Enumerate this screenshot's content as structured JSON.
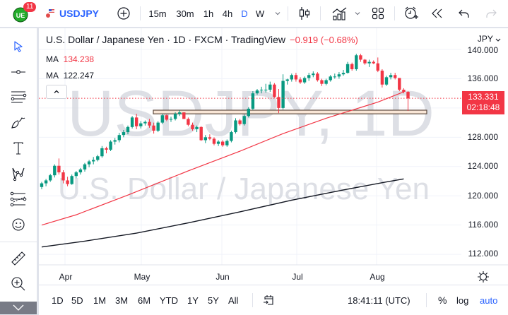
{
  "topbar": {
    "avatar_badge": "11",
    "symbol": "USDJPY",
    "intervals": [
      "15m",
      "30m",
      "1h",
      "4h",
      "D",
      "W"
    ],
    "active_interval": "D",
    "colors": {
      "accent": "#2962ff",
      "badge": "#f23645",
      "avatar": "#22ab2a"
    }
  },
  "left_toolbar": {
    "tools": [
      "cursor",
      "trend-line",
      "horizontal-lines",
      "brush",
      "text",
      "pattern",
      "fib-levels",
      "emoji",
      "ruler",
      "zoom-in"
    ]
  },
  "legend": {
    "title": "U.S. Dollar / Japanese Yen · 1D · FXCM · TradingView",
    "change": "−0.919 (−0.68%)",
    "ma1_label": "MA",
    "ma1_value": "134.238",
    "ma2_label": "MA",
    "ma2_value": "122.247"
  },
  "watermark": {
    "symbol": "USDJPY, 1D",
    "name": "U.S. Dollar / Japanese Yen"
  },
  "price_axis": {
    "currency": "JPY",
    "labels": [
      "140.000",
      "136.000",
      "128.000",
      "124.000",
      "120.000",
      "116.000",
      "112.000"
    ],
    "current_price": "133.331",
    "countdown": "02:18:48"
  },
  "time_axis": {
    "months": [
      "Apr",
      "May",
      "Jun",
      "Jul",
      "Aug"
    ]
  },
  "bottombar": {
    "ranges": [
      "1D",
      "5D",
      "1M",
      "3M",
      "6M",
      "YTD",
      "1Y",
      "5Y",
      "All"
    ],
    "clock": "18:41:11 (UTC)",
    "percent": "%",
    "log": "log",
    "auto": "auto"
  },
  "chart_data": {
    "type": "candlestick",
    "title": "U.S. Dollar / Japanese Yen · 1D · FXCM",
    "xlabel": "",
    "ylabel": "JPY",
    "ylim": [
      110.5,
      141
    ],
    "x_ticks": [
      "Apr",
      "May",
      "Jun",
      "Jul",
      "Aug"
    ],
    "y_ticks": [
      112,
      116,
      120,
      124,
      128,
      136,
      140
    ],
    "current_price": 133.331,
    "series": [
      {
        "name": "USDJPY",
        "type": "candles",
        "up_color": "#089981",
        "down_color": "#f23645",
        "ohlc": [
          [
            121.2,
            121.9,
            120.9,
            121.7
          ],
          [
            121.7,
            122.3,
            121.3,
            122.1
          ],
          [
            122.1,
            123.0,
            121.9,
            122.8
          ],
          [
            122.8,
            124.3,
            122.5,
            124.1
          ],
          [
            124.1,
            125.1,
            122.9,
            123.2
          ],
          [
            123.2,
            123.5,
            121.7,
            122.1
          ],
          [
            122.1,
            122.6,
            121.3,
            121.6
          ],
          [
            121.6,
            122.9,
            121.5,
            122.7
          ],
          [
            122.7,
            123.4,
            122.4,
            123.2
          ],
          [
            123.2,
            123.8,
            122.9,
            123.6
          ],
          [
            123.6,
            124.5,
            123.3,
            124.3
          ],
          [
            124.3,
            124.9,
            123.9,
            124.7
          ],
          [
            124.7,
            125.3,
            124.3,
            124.9
          ],
          [
            124.9,
            125.6,
            124.7,
            125.4
          ],
          [
            125.4,
            126.8,
            125.2,
            126.5
          ],
          [
            126.5,
            126.7,
            125.8,
            126.3
          ],
          [
            126.3,
            127.6,
            126.1,
            127.4
          ],
          [
            127.4,
            127.9,
            127.0,
            127.6
          ],
          [
            127.6,
            128.6,
            127.3,
            128.3
          ],
          [
            128.3,
            129.0,
            128.0,
            128.7
          ],
          [
            128.7,
            129.6,
            128.4,
            129.4
          ],
          [
            129.4,
            130.9,
            129.2,
            130.7
          ],
          [
            130.7,
            131.2,
            129.1,
            129.5
          ],
          [
            129.5,
            130.2,
            129.2,
            129.9
          ],
          [
            129.9,
            130.3,
            129.6,
            130.1
          ],
          [
            130.1,
            130.5,
            129.3,
            129.6
          ],
          [
            129.6,
            130.0,
            128.5,
            128.9
          ],
          [
            128.9,
            130.2,
            128.7,
            130.0
          ],
          [
            130.0,
            131.2,
            129.8,
            131.0
          ],
          [
            131.0,
            131.1,
            130.2,
            130.4
          ],
          [
            130.4,
            130.8,
            130.1,
            130.5
          ],
          [
            130.5,
            131.4,
            130.3,
            131.2
          ],
          [
            131.2,
            131.7,
            130.9,
            131.4
          ],
          [
            131.4,
            131.2,
            130.6,
            130.5
          ],
          [
            130.5,
            130.7,
            129.5,
            129.7
          ],
          [
            129.7,
            130.0,
            128.9,
            129.1
          ],
          [
            129.1,
            129.6,
            128.7,
            129.4
          ],
          [
            129.4,
            129.5,
            127.5,
            127.6
          ],
          [
            127.6,
            128.3,
            127.2,
            128.0
          ],
          [
            128.0,
            128.4,
            127.6,
            127.8
          ],
          [
            127.8,
            128.0,
            126.9,
            127.1
          ],
          [
            127.1,
            127.6,
            126.8,
            127.4
          ],
          [
            127.4,
            127.6,
            126.7,
            126.9
          ],
          [
            126.9,
            127.7,
            126.7,
            127.5
          ],
          [
            127.5,
            128.9,
            127.3,
            128.7
          ],
          [
            128.7,
            130.6,
            128.5,
            130.3
          ],
          [
            130.3,
            130.5,
            129.6,
            129.8
          ],
          [
            129.8,
            131.1,
            129.6,
            130.9
          ],
          [
            130.9,
            132.1,
            130.7,
            131.9
          ],
          [
            131.9,
            134.3,
            131.7,
            134.0
          ],
          [
            134.0,
            134.6,
            133.8,
            134.4
          ],
          [
            134.4,
            134.9,
            134.0,
            134.5
          ],
          [
            134.5,
            135.3,
            134.1,
            134.5
          ],
          [
            134.5,
            135.6,
            134.2,
            135.2
          ],
          [
            135.2,
            135.4,
            133.4,
            133.5
          ],
          [
            133.5,
            134.6,
            131.3,
            132.0
          ],
          [
            132.0,
            136.6,
            131.8,
            135.7
          ],
          [
            135.7,
            136.0,
            135.2,
            135.9
          ],
          [
            135.9,
            136.7,
            135.6,
            136.5
          ],
          [
            136.5,
            136.8,
            135.6,
            135.9
          ],
          [
            135.9,
            136.2,
            135.3,
            135.5
          ],
          [
            135.5,
            136.3,
            135.3,
            136.1
          ],
          [
            136.1,
            136.8,
            135.7,
            136.5
          ],
          [
            136.5,
            137.0,
            136.2,
            136.7
          ],
          [
            136.7,
            136.9,
            135.6,
            135.8
          ],
          [
            135.8,
            136.0,
            135.0,
            135.3
          ],
          [
            135.3,
            136.0,
            135.1,
            135.8
          ],
          [
            135.8,
            136.5,
            135.6,
            136.3
          ],
          [
            136.3,
            136.7,
            136.0,
            136.3
          ],
          [
            136.3,
            136.9,
            136.0,
            136.6
          ],
          [
            136.6,
            137.2,
            136.4,
            136.8
          ],
          [
            136.8,
            138.3,
            136.7,
            138.0
          ],
          [
            138.0,
            138.2,
            137.1,
            137.3
          ],
          [
            137.3,
            139.4,
            137.1,
            139.2
          ],
          [
            139.2,
            139.4,
            138.3,
            138.6
          ],
          [
            138.6,
            138.7,
            137.9,
            138.1
          ],
          [
            138.1,
            138.6,
            137.6,
            138.3
          ],
          [
            138.3,
            138.5,
            138.0,
            138.1
          ],
          [
            138.1,
            138.9,
            136.9,
            137.1
          ],
          [
            137.1,
            137.3,
            134.8,
            135.2
          ],
          [
            135.2,
            136.4,
            135.0,
            136.2
          ],
          [
            136.2,
            136.8,
            135.9,
            136.5
          ],
          [
            136.5,
            136.8,
            135.9,
            136.1
          ],
          [
            136.1,
            136.0,
            134.3,
            134.5
          ],
          [
            134.5,
            134.7,
            134.0,
            134.2
          ],
          [
            134.2,
            134.3,
            131.6,
            133.3
          ]
        ]
      },
      {
        "name": "MA (red)",
        "type": "line",
        "color": "#f23645",
        "last": 134.238,
        "points": [
          [
            0,
            116.0
          ],
          [
            8,
            117.4
          ],
          [
            20,
            120.1
          ],
          [
            34,
            123.4
          ],
          [
            46,
            126.1
          ],
          [
            56,
            128.5
          ],
          [
            66,
            130.6
          ],
          [
            78,
            132.8
          ],
          [
            84,
            134.2
          ]
        ]
      },
      {
        "name": "MA (black)",
        "type": "line",
        "color": "#131722",
        "last": 122.247,
        "points": [
          [
            0,
            113.0
          ],
          [
            10,
            113.8
          ],
          [
            22,
            114.9
          ],
          [
            34,
            116.3
          ],
          [
            46,
            117.8
          ],
          [
            58,
            119.4
          ],
          [
            70,
            120.8
          ],
          [
            80,
            121.9
          ],
          [
            84,
            122.3
          ]
        ]
      }
    ],
    "annotations": [
      {
        "type": "rectangle",
        "price_from": 131.2,
        "price_to": 131.7,
        "color": "#f9e6d6",
        "border": "#5d4b3f"
      }
    ],
    "grid": true
  }
}
